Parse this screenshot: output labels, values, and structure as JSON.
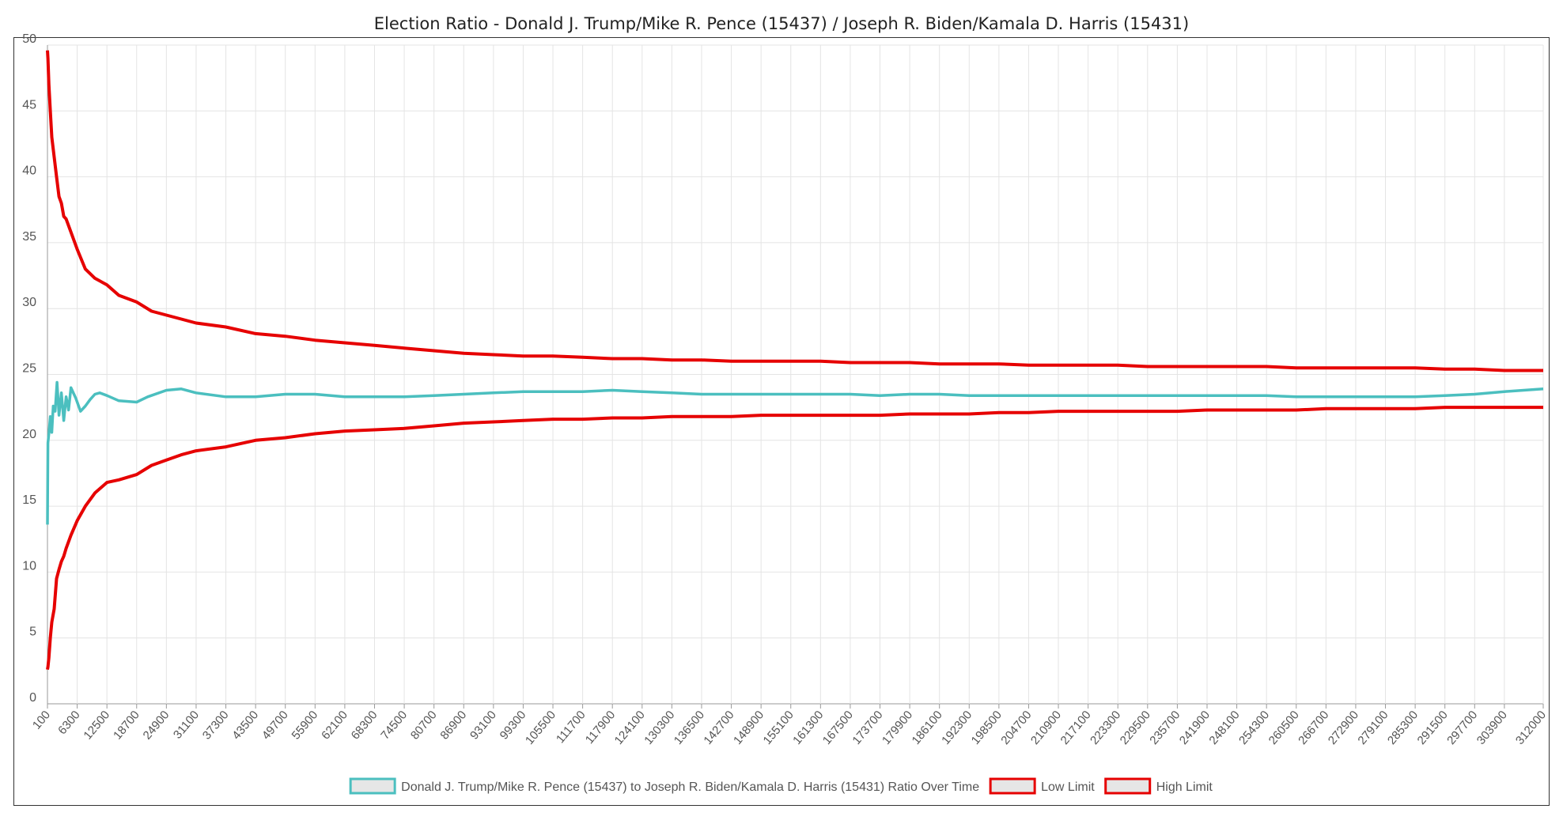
{
  "chart_data": {
    "type": "line",
    "title": "Election Ratio - Donald J. Trump/Mike R. Pence (15437) / Joseph R. Biden/Kamala D. Harris (15431)",
    "xlabel": "",
    "ylabel": "",
    "ylim": [
      0,
      50
    ],
    "yticks": [
      0,
      5,
      10,
      15,
      20,
      25,
      30,
      35,
      40,
      45,
      50
    ],
    "xlim": [
      100,
      312000
    ],
    "xticks": [
      100,
      6300,
      12500,
      18700,
      24900,
      31100,
      37300,
      43500,
      49700,
      55900,
      62100,
      68300,
      74500,
      80700,
      86900,
      93100,
      99300,
      105500,
      111700,
      117900,
      124100,
      130300,
      136500,
      142700,
      148900,
      155100,
      161300,
      167500,
      173700,
      179900,
      186100,
      192300,
      198500,
      204700,
      210900,
      217100,
      223300,
      229500,
      235700,
      241900,
      248100,
      254300,
      260500,
      266700,
      272900,
      279100,
      285300,
      291500,
      297700,
      303900,
      312000
    ],
    "grid": true,
    "legend_position": "bottom",
    "series": [
      {
        "name": "Donald J. Trump/Mike R. Pence (15437) to Joseph R. Biden/Kamala D. Harris (15431) Ratio Over Time",
        "color": "#4bbfbf",
        "x": [
          100,
          200,
          400,
          700,
          1000,
          1300,
          1700,
          2100,
          2500,
          3000,
          3500,
          4000,
          4500,
          5000,
          6000,
          7000,
          8000,
          9000,
          10000,
          11000,
          12500,
          15000,
          18700,
          21000,
          24900,
          28000,
          31100,
          37300,
          43500,
          49700,
          55900,
          62100,
          68300,
          74500,
          80700,
          86900,
          93100,
          99300,
          105500,
          111700,
          117900,
          124100,
          130300,
          136500,
          142700,
          148900,
          155100,
          161300,
          167500,
          173700,
          179900,
          186100,
          192300,
          198500,
          204700,
          210900,
          217100,
          223300,
          229500,
          235700,
          241900,
          248100,
          254300,
          260500,
          266700,
          272900,
          279100,
          285300,
          291500,
          297700,
          303900,
          312000
        ],
        "y": [
          13.6,
          19.8,
          20.5,
          21.8,
          20.6,
          22.6,
          22.2,
          24.4,
          21.9,
          23.6,
          21.5,
          23.3,
          22.3,
          24.0,
          23.2,
          22.2,
          22.6,
          23.1,
          23.5,
          23.6,
          23.4,
          23.0,
          22.9,
          23.3,
          23.8,
          23.9,
          23.6,
          23.3,
          23.3,
          23.5,
          23.5,
          23.3,
          23.3,
          23.3,
          23.4,
          23.5,
          23.6,
          23.7,
          23.7,
          23.7,
          23.8,
          23.7,
          23.6,
          23.5,
          23.5,
          23.5,
          23.5,
          23.5,
          23.5,
          23.4,
          23.5,
          23.5,
          23.4,
          23.4,
          23.4,
          23.4,
          23.4,
          23.4,
          23.4,
          23.4,
          23.4,
          23.4,
          23.4,
          23.3,
          23.3,
          23.3,
          23.3,
          23.3,
          23.4,
          23.5,
          23.7,
          23.9
        ]
      },
      {
        "name": "Low Limit",
        "color": "#e60000",
        "x": [
          100,
          200,
          400,
          700,
          1000,
          1500,
          2000,
          2500,
          3000,
          3500,
          4000,
          5000,
          6300,
          8000,
          10000,
          12500,
          15000,
          18700,
          21800,
          24900,
          28000,
          31100,
          37300,
          43500,
          49700,
          55900,
          62100,
          68300,
          74500,
          80700,
          86900,
          93100,
          99300,
          105500,
          111700,
          117900,
          124100,
          130300,
          136500,
          142700,
          148900,
          155100,
          161300,
          167500,
          173700,
          179900,
          186100,
          192300,
          198500,
          204700,
          210900,
          217100,
          223300,
          229500,
          235700,
          241900,
          248100,
          254300,
          260500,
          266700,
          272900,
          279100,
          285300,
          291500,
          297700,
          303900,
          312000
        ],
        "y": [
          2.6,
          2.8,
          3.5,
          5.0,
          6.2,
          7.2,
          9.5,
          10.2,
          10.8,
          11.2,
          11.8,
          12.8,
          13.9,
          15.0,
          16.0,
          16.8,
          17.0,
          17.4,
          18.1,
          18.5,
          18.9,
          19.2,
          19.5,
          20.0,
          20.2,
          20.5,
          20.7,
          20.8,
          20.9,
          21.1,
          21.3,
          21.4,
          21.5,
          21.6,
          21.6,
          21.7,
          21.7,
          21.8,
          21.8,
          21.8,
          21.9,
          21.9,
          21.9,
          21.9,
          21.9,
          22.0,
          22.0,
          22.0,
          22.1,
          22.1,
          22.2,
          22.2,
          22.2,
          22.2,
          22.2,
          22.3,
          22.3,
          22.3,
          22.3,
          22.4,
          22.4,
          22.4,
          22.4,
          22.5,
          22.5,
          22.5,
          22.5
        ]
      },
      {
        "name": "High Limit",
        "color": "#e60000",
        "x": [
          100,
          200,
          400,
          700,
          1000,
          1500,
          2000,
          2500,
          3000,
          3500,
          4000,
          5000,
          6300,
          8000,
          10000,
          12500,
          15000,
          18700,
          21800,
          24900,
          28000,
          31100,
          37300,
          43500,
          49700,
          55900,
          62100,
          68300,
          74500,
          80700,
          86900,
          93100,
          99300,
          105500,
          111700,
          117900,
          124100,
          130300,
          136500,
          142700,
          148900,
          155100,
          161300,
          167500,
          173700,
          179900,
          186100,
          192300,
          198500,
          204700,
          210900,
          217100,
          223300,
          229500,
          235700,
          241900,
          248100,
          254300,
          260500,
          266700,
          272900,
          279100,
          285300,
          291500,
          297700,
          303900,
          312000
        ],
        "y": [
          49.6,
          49.0,
          47.0,
          45.0,
          43.0,
          41.5,
          40.0,
          38.5,
          38.0,
          37.0,
          36.8,
          35.8,
          34.5,
          33.0,
          32.3,
          31.8,
          31.0,
          30.5,
          29.8,
          29.5,
          29.2,
          28.9,
          28.6,
          28.1,
          27.9,
          27.6,
          27.4,
          27.2,
          27.0,
          26.8,
          26.6,
          26.5,
          26.4,
          26.4,
          26.3,
          26.2,
          26.2,
          26.1,
          26.1,
          26.0,
          26.0,
          26.0,
          26.0,
          25.9,
          25.9,
          25.9,
          25.8,
          25.8,
          25.8,
          25.7,
          25.7,
          25.7,
          25.7,
          25.6,
          25.6,
          25.6,
          25.6,
          25.6,
          25.5,
          25.5,
          25.5,
          25.5,
          25.5,
          25.4,
          25.4,
          25.3,
          25.3
        ]
      }
    ]
  }
}
